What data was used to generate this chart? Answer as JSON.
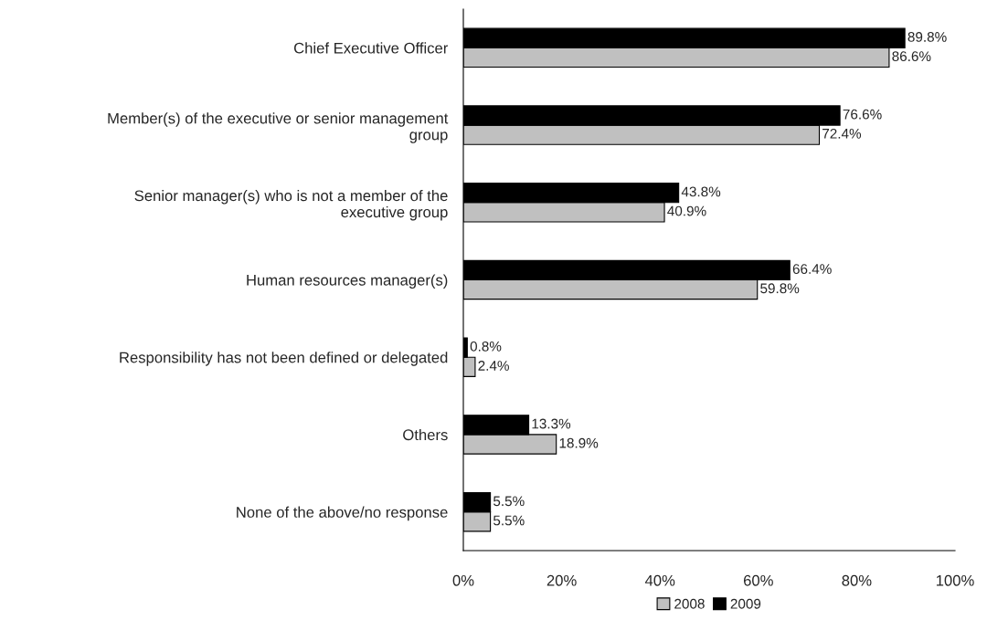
{
  "chart_data": {
    "type": "bar",
    "orientation": "horizontal",
    "categories": [
      "Chief Executive Officer",
      "Member(s) of the executive or senior management\ngroup",
      "Senior manager(s) who is not a member of the\nexecutive group",
      "Human resources manager(s)",
      "Responsibility has not been defined or delegated",
      "Others",
      "None of the above/no response"
    ],
    "series": [
      {
        "name": "2008",
        "color": "#c0c0c0",
        "values": [
          86.6,
          72.4,
          40.9,
          59.8,
          2.4,
          18.9,
          5.5
        ],
        "value_labels": [
          "86.6%",
          "72.4%",
          "40.9%",
          "59.8%",
          "2.4%",
          "18.9%",
          "5.5%"
        ]
      },
      {
        "name": "2009",
        "color": "#000000",
        "values": [
          89.8,
          76.6,
          43.8,
          66.4,
          0.8,
          13.3,
          5.5
        ],
        "value_labels": [
          "89.8%",
          "76.6%",
          "43.8%",
          "66.4%",
          "0.8%",
          "13.3%",
          "5.5%"
        ]
      }
    ],
    "xlim": [
      0,
      100
    ],
    "xticks": [
      {
        "value": 0,
        "label": "0%"
      },
      {
        "value": 20,
        "label": "20%"
      },
      {
        "value": 40,
        "label": "40%"
      },
      {
        "value": 60,
        "label": "60%"
      },
      {
        "value": 80,
        "label": "80%"
      },
      {
        "value": 100,
        "label": "100%"
      }
    ],
    "grid": false,
    "legend": "bottom"
  }
}
